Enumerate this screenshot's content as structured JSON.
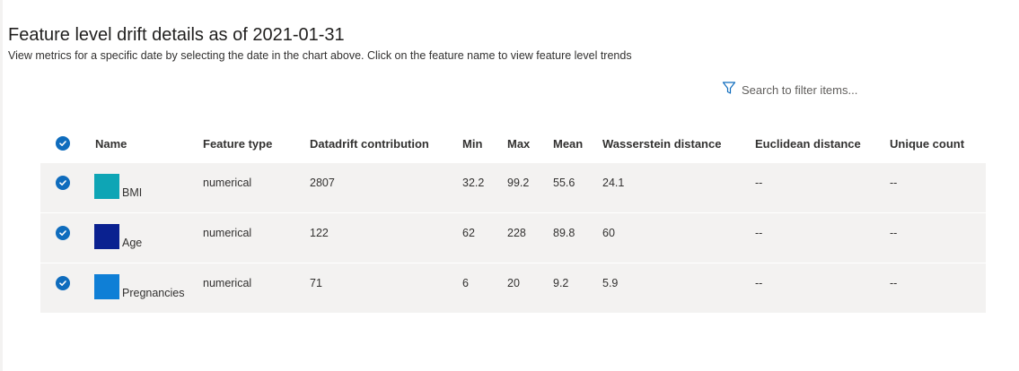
{
  "header": {
    "title": "Feature level drift details as of 2021-01-31",
    "subtitle": "View metrics for a specific date by selecting the date in the chart above. Click on the feature name to view feature level trends"
  },
  "filter": {
    "icon": "filter-icon",
    "placeholder": "Search to filter items..."
  },
  "table": {
    "columns": {
      "name": "Name",
      "feature_type": "Feature type",
      "datadrift": "Datadrift contribution",
      "min": "Min",
      "max": "Max",
      "mean": "Mean",
      "wasserstein": "Wasserstein distance",
      "euclidean": "Euclidean distance",
      "unique": "Unique count"
    },
    "rows": [
      {
        "name": "BMI",
        "color": "#0ea5b5",
        "feature_type": "numerical",
        "datadrift": "2807",
        "min": "32.2",
        "max": "99.2",
        "mean": "55.6",
        "wasserstein": "24.1",
        "euclidean": "--",
        "unique": "--"
      },
      {
        "name": "Age",
        "color": "#0a2190",
        "feature_type": "numerical",
        "datadrift": "122",
        "min": "62",
        "max": "228",
        "mean": "89.8",
        "wasserstein": "60",
        "euclidean": "--",
        "unique": "--"
      },
      {
        "name": "Pregnancies",
        "color": "#0f7fd6",
        "feature_type": "numerical",
        "datadrift": "71",
        "min": "6",
        "max": "20",
        "mean": "9.2",
        "wasserstein": "5.9",
        "euclidean": "--",
        "unique": "--"
      }
    ]
  },
  "colors": {
    "accent": "#0f6cbd",
    "row_bg": "#f3f2f1"
  }
}
